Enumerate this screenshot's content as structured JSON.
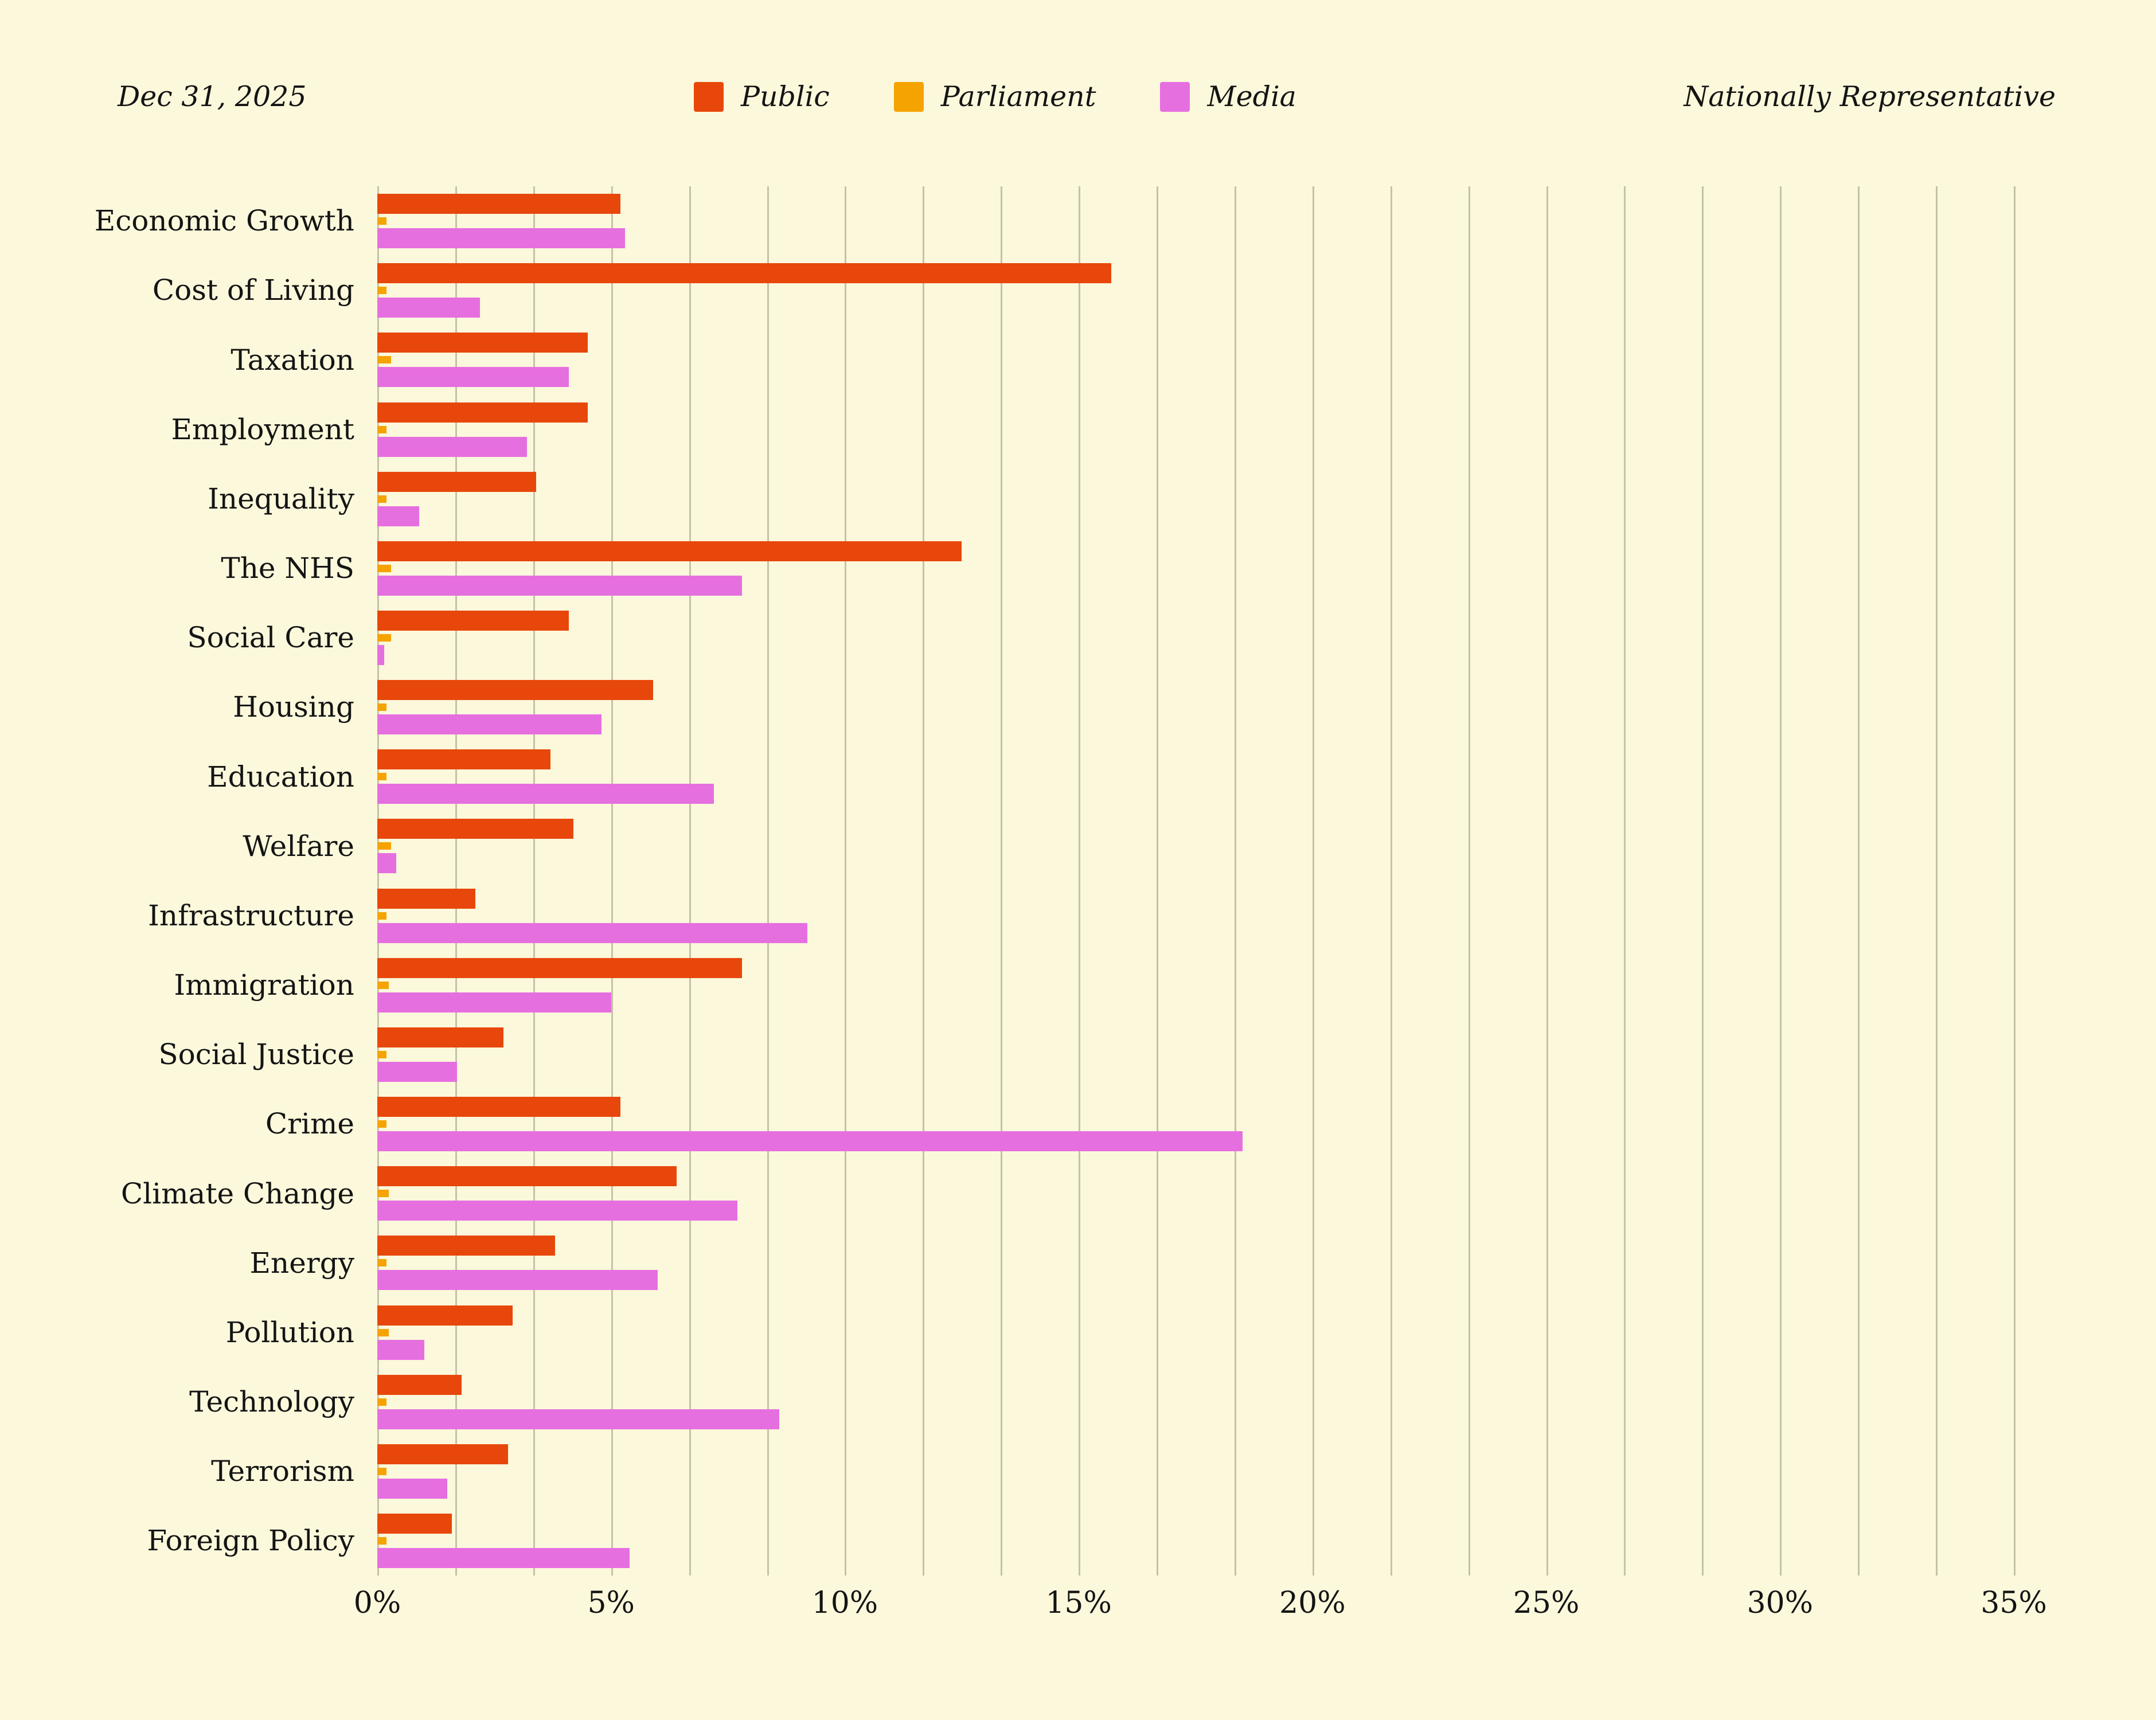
{
  "header": {
    "date": "Dec 31, 2025",
    "note": "Nationally Representative"
  },
  "legend": [
    {
      "label": "Public",
      "color": "#E8470B"
    },
    {
      "label": "Parliament",
      "color": "#F5A300"
    },
    {
      "label": "Media",
      "color": "#E66FE0"
    }
  ],
  "colors": {
    "background": "#FBF8DB",
    "gridline": "#C4C2A8",
    "text": "#141414",
    "public": "#E8470B",
    "parliament": "#F5A300",
    "media": "#E66FE0"
  },
  "chart_data": {
    "type": "bar",
    "orientation": "horizontal",
    "title": "",
    "categories": [
      "Economic Growth",
      "Cost of Living",
      "Taxation",
      "Employment",
      "Inequality",
      "The NHS",
      "Social Care",
      "Housing",
      "Education",
      "Welfare",
      "Infrastructure",
      "Immigration",
      "Social Justice",
      "Crime",
      "Climate Change",
      "Energy",
      "Pollution",
      "Technology",
      "Terrorism",
      "Foreign Policy"
    ],
    "series": [
      {
        "name": "Public",
        "color": "#E8470B",
        "values": [
          5.2,
          15.7,
          4.5,
          4.5,
          3.4,
          12.5,
          4.1,
          5.9,
          3.7,
          4.2,
          2.1,
          7.8,
          2.7,
          5.2,
          6.4,
          3.8,
          2.9,
          1.8,
          2.8,
          1.6
        ]
      },
      {
        "name": "Parliament",
        "color": "#F5A300",
        "values": [
          0.2,
          0.2,
          0.3,
          0.2,
          0.2,
          0.3,
          0.3,
          0.2,
          0.2,
          0.3,
          0.2,
          0.25,
          0.2,
          0.2,
          0.25,
          0.2,
          0.25,
          0.2,
          0.2,
          0.2
        ]
      },
      {
        "name": "Media",
        "color": "#E66FE0",
        "values": [
          5.3,
          2.2,
          4.1,
          3.2,
          0.9,
          7.8,
          0.15,
          4.8,
          7.2,
          0.4,
          9.2,
          5.0,
          1.7,
          18.5,
          7.7,
          6.0,
          1.0,
          8.6,
          1.5,
          5.4
        ]
      }
    ],
    "x_ticks": [
      {
        "value": 0,
        "label": "0%"
      },
      {
        "value": 5,
        "label": "5%"
      },
      {
        "value": 10,
        "label": "10%"
      },
      {
        "value": 15,
        "label": "15%"
      },
      {
        "value": 20,
        "label": "20%"
      },
      {
        "value": 25,
        "label": "25%"
      },
      {
        "value": 30,
        "label": "30%"
      },
      {
        "value": 35,
        "label": "35%"
      }
    ],
    "xlim": [
      0,
      36.3
    ],
    "grid": {
      "show": true,
      "minor_step": 1.6666667,
      "max_gridline": 35
    },
    "legend_position": "top-center",
    "ylabel": "",
    "xlabel": ""
  }
}
